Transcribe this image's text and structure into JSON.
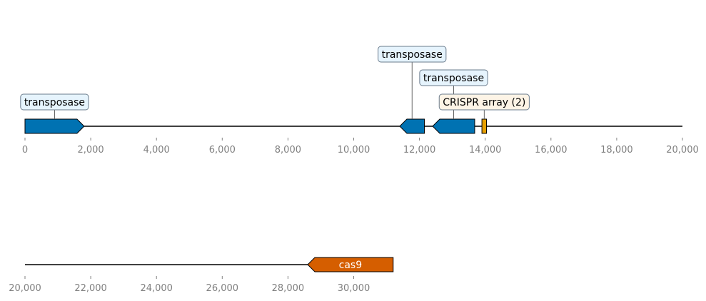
{
  "track_rows": [
    {
      "range": [
        0,
        20000
      ],
      "ticks": [
        "0",
        "2,000",
        "4,000",
        "6,000",
        "8,000",
        "10,000",
        "12,000",
        "14,000",
        "16,000",
        "18,000",
        "20,000"
      ],
      "features": [
        {
          "start": 0,
          "end": 1800,
          "strand": 1,
          "color": "#0072b2",
          "label": "transposase",
          "label_style": "box",
          "label_level": 0
        },
        {
          "start": 11400,
          "end": 12150,
          "strand": -1,
          "color": "#0072b2",
          "label": "transposase",
          "label_style": "box",
          "label_level": 2
        },
        {
          "start": 12400,
          "end": 13680,
          "strand": -1,
          "color": "#0072b2",
          "label": "transposase",
          "label_style": "box",
          "label_level": 1
        },
        {
          "start": 13900,
          "end": 14040,
          "strand": 0,
          "color": "#e69f00",
          "label": "CRISPR array (2)",
          "label_style": "box",
          "label_level": 0
        }
      ]
    },
    {
      "range": [
        20000,
        40000
      ],
      "ticks": [
        "20,000",
        "22,000",
        "24,000",
        "26,000",
        "28,000",
        "30,000"
      ],
      "features": [
        {
          "start": 28600,
          "end": 31200,
          "strand": -1,
          "color": "#d55e00",
          "label": "cas9",
          "label_style": "inline",
          "label_level": 0
        }
      ]
    }
  ],
  "colors": {
    "backbone": "#000000",
    "tick_text": "#808080",
    "label_box_fill": "#e6f4fd",
    "crispr_box_fill": "#fdf4e6",
    "label_box_stroke": "#6a7b8c"
  }
}
